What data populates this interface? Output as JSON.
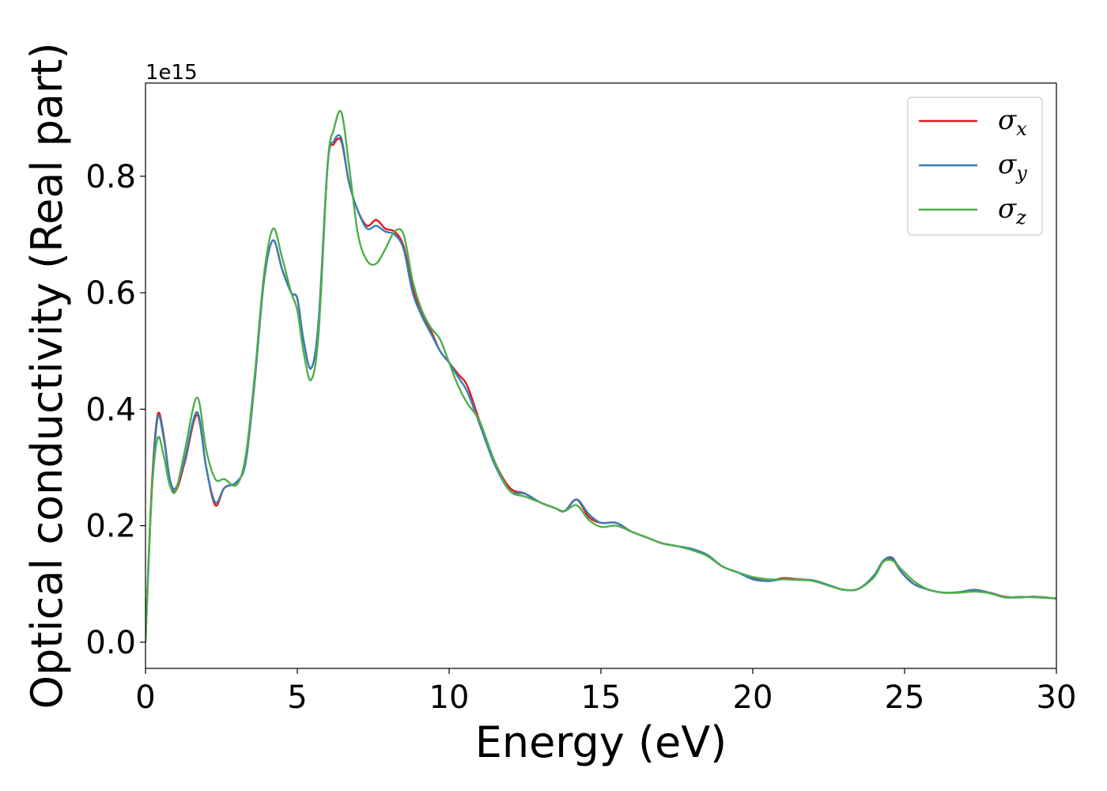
{
  "chart_data": {
    "type": "line",
    "xlabel": "Energy (eV)",
    "ylabel": "Optical conductivity (Real part)",
    "y_offset_text": "1e15",
    "y_scale": 1000000000000000.0,
    "xlim": [
      0,
      30
    ],
    "ylim": [
      -0.045,
      0.96
    ],
    "x_ticks": [
      0,
      5,
      10,
      15,
      20,
      25,
      30
    ],
    "x_tick_labels": [
      "0",
      "5",
      "10",
      "15",
      "20",
      "25",
      "30"
    ],
    "y_ticks": [
      0.0,
      0.2,
      0.4,
      0.6,
      0.8
    ],
    "y_tick_labels": [
      "0.0",
      "0.2",
      "0.4",
      "0.6",
      "0.8"
    ],
    "grid": false,
    "legend_position": "top-right",
    "series": [
      {
        "name": "σ",
        "subscript": "x",
        "color": "#e41a1c",
        "x": [
          0,
          0.2,
          0.4,
          0.6,
          0.8,
          1.0,
          1.3,
          1.7,
          2.0,
          2.3,
          2.6,
          3.0,
          3.3,
          3.6,
          3.9,
          4.2,
          4.5,
          4.8,
          5.0,
          5.2,
          5.45,
          5.7,
          6.0,
          6.2,
          6.45,
          6.7,
          7.0,
          7.3,
          7.6,
          7.9,
          8.2,
          8.5,
          8.8,
          9.1,
          9.4,
          9.7,
          10.0,
          10.3,
          10.6,
          11.0,
          11.5,
          12.0,
          12.5,
          13.0,
          13.5,
          13.8,
          14.2,
          14.6,
          15.0,
          15.5,
          16.0,
          16.5,
          17.0,
          17.5,
          18.0,
          18.5,
          19.0,
          19.5,
          20.0,
          20.5,
          21.0,
          21.5,
          22.0,
          22.5,
          23.0,
          23.5,
          24.0,
          24.3,
          24.6,
          24.9,
          25.3,
          25.8,
          26.3,
          26.8,
          27.3,
          27.8,
          28.3,
          28.8,
          29.3,
          30.0
        ],
        "y": [
          0.0,
          0.26,
          0.39,
          0.355,
          0.28,
          0.26,
          0.31,
          0.39,
          0.3,
          0.235,
          0.265,
          0.275,
          0.31,
          0.45,
          0.62,
          0.69,
          0.64,
          0.6,
          0.59,
          0.52,
          0.47,
          0.55,
          0.82,
          0.855,
          0.86,
          0.79,
          0.74,
          0.715,
          0.725,
          0.71,
          0.705,
          0.68,
          0.61,
          0.565,
          0.535,
          0.5,
          0.48,
          0.46,
          0.44,
          0.38,
          0.31,
          0.265,
          0.255,
          0.24,
          0.23,
          0.225,
          0.245,
          0.215,
          0.205,
          0.205,
          0.19,
          0.18,
          0.17,
          0.165,
          0.16,
          0.15,
          0.13,
          0.12,
          0.11,
          0.105,
          0.11,
          0.108,
          0.106,
          0.098,
          0.09,
          0.092,
          0.115,
          0.14,
          0.142,
          0.12,
          0.1,
          0.09,
          0.085,
          0.086,
          0.088,
          0.085,
          0.078,
          0.077,
          0.078,
          0.075
        ]
      },
      {
        "name": "σ",
        "subscript": "y",
        "color": "#377eb8",
        "x": [
          0,
          0.2,
          0.4,
          0.6,
          0.8,
          1.0,
          1.3,
          1.7,
          2.0,
          2.3,
          2.6,
          3.0,
          3.3,
          3.6,
          3.9,
          4.2,
          4.5,
          4.8,
          5.0,
          5.2,
          5.45,
          5.7,
          6.0,
          6.2,
          6.45,
          6.7,
          7.0,
          7.3,
          7.6,
          7.9,
          8.2,
          8.5,
          8.8,
          9.1,
          9.4,
          9.7,
          10.0,
          10.3,
          10.6,
          11.0,
          11.5,
          12.0,
          12.5,
          13.0,
          13.5,
          13.8,
          14.2,
          14.6,
          15.0,
          15.5,
          16.0,
          16.5,
          17.0,
          17.5,
          18.0,
          18.5,
          19.0,
          19.5,
          20.0,
          20.5,
          21.0,
          21.5,
          22.0,
          22.5,
          23.0,
          23.5,
          24.0,
          24.3,
          24.6,
          24.9,
          25.3,
          25.8,
          26.3,
          26.8,
          27.3,
          27.8,
          28.3,
          28.8,
          29.3,
          30.0
        ],
        "y": [
          0.0,
          0.25,
          0.385,
          0.35,
          0.28,
          0.265,
          0.315,
          0.395,
          0.3,
          0.24,
          0.265,
          0.275,
          0.31,
          0.45,
          0.62,
          0.69,
          0.64,
          0.6,
          0.59,
          0.52,
          0.47,
          0.55,
          0.82,
          0.86,
          0.865,
          0.79,
          0.74,
          0.71,
          0.715,
          0.705,
          0.7,
          0.675,
          0.6,
          0.56,
          0.53,
          0.5,
          0.48,
          0.455,
          0.43,
          0.375,
          0.305,
          0.26,
          0.255,
          0.24,
          0.23,
          0.225,
          0.245,
          0.22,
          0.205,
          0.205,
          0.19,
          0.18,
          0.17,
          0.165,
          0.16,
          0.15,
          0.13,
          0.12,
          0.108,
          0.105,
          0.108,
          0.107,
          0.106,
          0.098,
          0.09,
          0.092,
          0.115,
          0.14,
          0.145,
          0.12,
          0.1,
          0.09,
          0.085,
          0.086,
          0.09,
          0.085,
          0.077,
          0.077,
          0.078,
          0.075
        ]
      },
      {
        "name": "σ",
        "subscript": "z",
        "color": "#4daf4a",
        "x": [
          0,
          0.2,
          0.4,
          0.6,
          0.8,
          1.0,
          1.3,
          1.7,
          2.0,
          2.3,
          2.6,
          3.0,
          3.3,
          3.6,
          3.9,
          4.2,
          4.5,
          4.8,
          5.0,
          5.2,
          5.45,
          5.7,
          6.0,
          6.2,
          6.45,
          6.7,
          7.0,
          7.3,
          7.6,
          7.9,
          8.2,
          8.5,
          8.8,
          9.1,
          9.4,
          9.7,
          10.0,
          10.3,
          10.6,
          11.0,
          11.5,
          12.0,
          12.5,
          13.0,
          13.5,
          13.8,
          14.2,
          14.6,
          15.0,
          15.5,
          16.0,
          16.5,
          17.0,
          17.5,
          18.0,
          18.5,
          19.0,
          19.5,
          20.0,
          20.5,
          21.0,
          21.5,
          22.0,
          22.5,
          23.0,
          23.5,
          24.0,
          24.3,
          24.6,
          24.9,
          25.3,
          25.8,
          26.3,
          26.8,
          27.3,
          27.8,
          28.3,
          28.8,
          29.3,
          30.0
        ],
        "y": [
          0.0,
          0.25,
          0.35,
          0.32,
          0.27,
          0.26,
          0.33,
          0.42,
          0.33,
          0.28,
          0.28,
          0.27,
          0.32,
          0.46,
          0.63,
          0.71,
          0.66,
          0.6,
          0.57,
          0.5,
          0.45,
          0.53,
          0.82,
          0.88,
          0.91,
          0.82,
          0.7,
          0.655,
          0.65,
          0.675,
          0.705,
          0.7,
          0.62,
          0.57,
          0.54,
          0.52,
          0.48,
          0.44,
          0.41,
          0.38,
          0.31,
          0.26,
          0.25,
          0.24,
          0.23,
          0.225,
          0.235,
          0.21,
          0.198,
          0.2,
          0.19,
          0.18,
          0.17,
          0.165,
          0.158,
          0.148,
          0.13,
          0.12,
          0.112,
          0.108,
          0.108,
          0.107,
          0.105,
          0.097,
          0.09,
          0.092,
          0.112,
          0.138,
          0.14,
          0.125,
          0.105,
          0.09,
          0.085,
          0.085,
          0.087,
          0.084,
          0.077,
          0.078,
          0.077,
          0.075
        ]
      }
    ]
  }
}
